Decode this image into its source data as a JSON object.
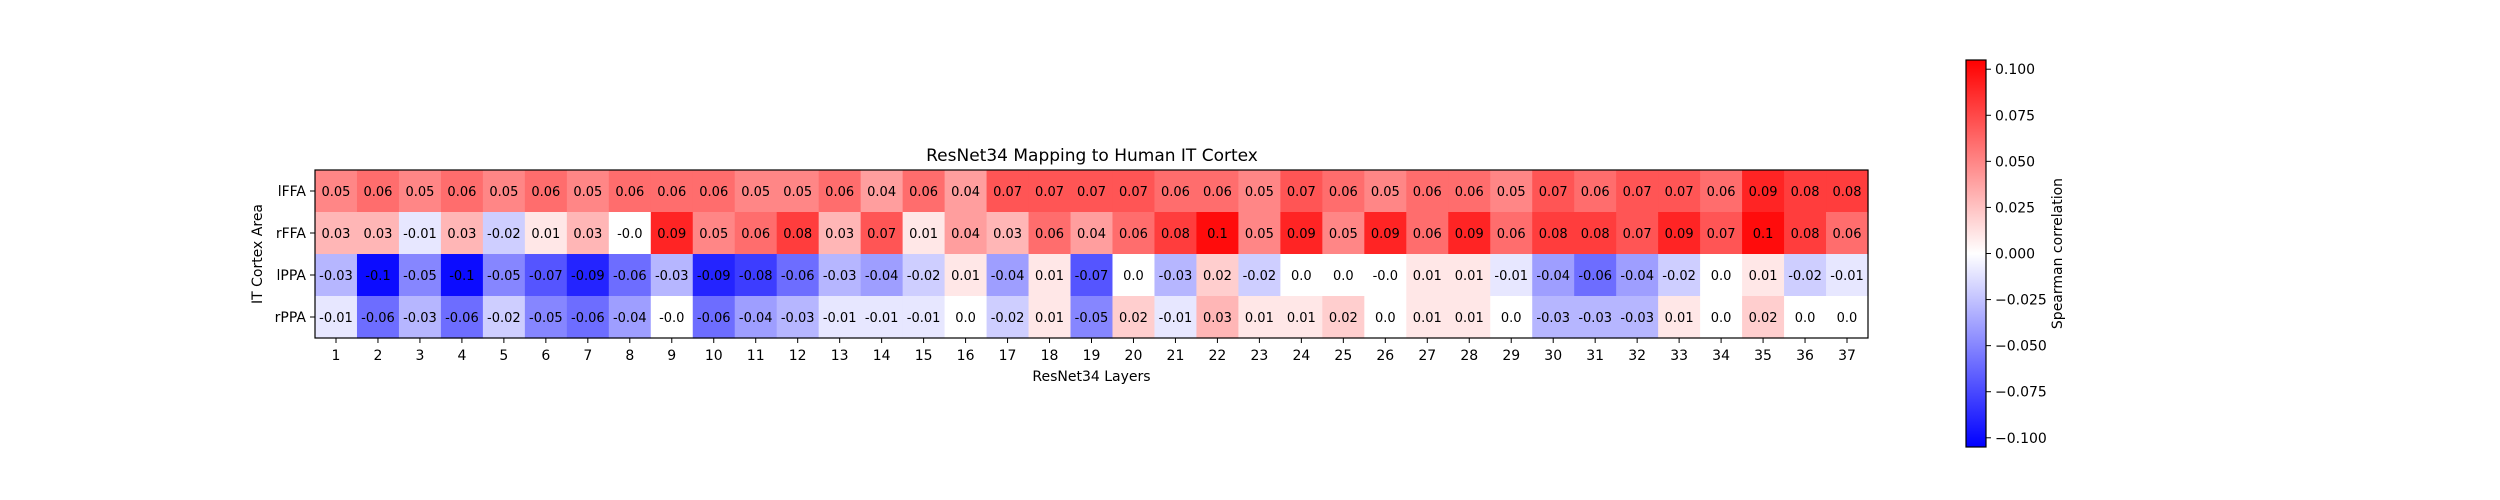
{
  "chart_data": {
    "type": "heatmap",
    "title": "ResNet34 Mapping to Human IT Cortex",
    "xlabel": "ResNet34 Layers",
    "ylabel": "IT Cortex Area",
    "x_categories": [
      "1",
      "2",
      "3",
      "4",
      "5",
      "6",
      "7",
      "8",
      "9",
      "10",
      "11",
      "12",
      "13",
      "14",
      "15",
      "16",
      "17",
      "18",
      "19",
      "20",
      "21",
      "22",
      "23",
      "24",
      "25",
      "26",
      "27",
      "28",
      "29",
      "30",
      "31",
      "32",
      "33",
      "34",
      "35",
      "36",
      "37"
    ],
    "y_categories": [
      "lFFA",
      "rFFA",
      "lPPA",
      "rPPA"
    ],
    "values": [
      [
        0.05,
        0.06,
        0.05,
        0.06,
        0.05,
        0.06,
        0.05,
        0.06,
        0.06,
        0.06,
        0.05,
        0.05,
        0.06,
        0.04,
        0.06,
        0.04,
        0.07,
        0.07,
        0.07,
        0.07,
        0.06,
        0.06,
        0.05,
        0.07,
        0.06,
        0.05,
        0.06,
        0.06,
        0.05,
        0.07,
        0.06,
        0.07,
        0.07,
        0.06,
        0.09,
        0.08,
        0.08
      ],
      [
        0.03,
        0.03,
        -0.01,
        0.03,
        -0.02,
        0.01,
        0.03,
        -0.0,
        0.09,
        0.05,
        0.06,
        0.08,
        0.03,
        0.07,
        0.01,
        0.04,
        0.03,
        0.06,
        0.04,
        0.06,
        0.08,
        0.1,
        0.05,
        0.09,
        0.05,
        0.09,
        0.06,
        0.09,
        0.06,
        0.08,
        0.08,
        0.07,
        0.09,
        0.07,
        0.1,
        0.08,
        0.06
      ],
      [
        -0.03,
        -0.1,
        -0.05,
        -0.1,
        -0.05,
        -0.07,
        -0.09,
        -0.06,
        -0.03,
        -0.09,
        -0.08,
        -0.06,
        -0.03,
        -0.04,
        -0.02,
        0.01,
        -0.04,
        0.01,
        -0.07,
        0.0,
        -0.03,
        0.02,
        -0.02,
        0.0,
        0.0,
        -0.0,
        0.01,
        0.01,
        -0.01,
        -0.04,
        -0.06,
        -0.04,
        -0.02,
        0.0,
        0.01,
        -0.02,
        -0.01
      ],
      [
        -0.01,
        -0.06,
        -0.03,
        -0.06,
        -0.02,
        -0.05,
        -0.06,
        -0.04,
        -0.0,
        -0.06,
        -0.04,
        -0.03,
        -0.01,
        -0.01,
        -0.01,
        0.0,
        -0.02,
        0.01,
        -0.05,
        0.02,
        -0.01,
        0.03,
        0.01,
        0.01,
        0.02,
        0.0,
        0.01,
        0.01,
        0.0,
        -0.03,
        -0.03,
        -0.03,
        0.01,
        0.0,
        0.02,
        0.0,
        0.0
      ]
    ],
    "colormap": "bwr",
    "color_low": "#0000ff",
    "color_mid": "#ffffff",
    "color_high": "#ff0000",
    "vmin": -0.105,
    "vmax": 0.105,
    "colorbar": {
      "label": "Spearman correlation",
      "ticks": [
        -0.1,
        -0.075,
        -0.05,
        -0.025,
        0.0,
        0.025,
        0.05,
        0.075,
        0.1
      ],
      "tick_labels": [
        "−0.100",
        "−0.075",
        "−0.050",
        "−0.025",
        "0.000",
        "0.025",
        "0.050",
        "0.075",
        "0.100"
      ]
    }
  }
}
